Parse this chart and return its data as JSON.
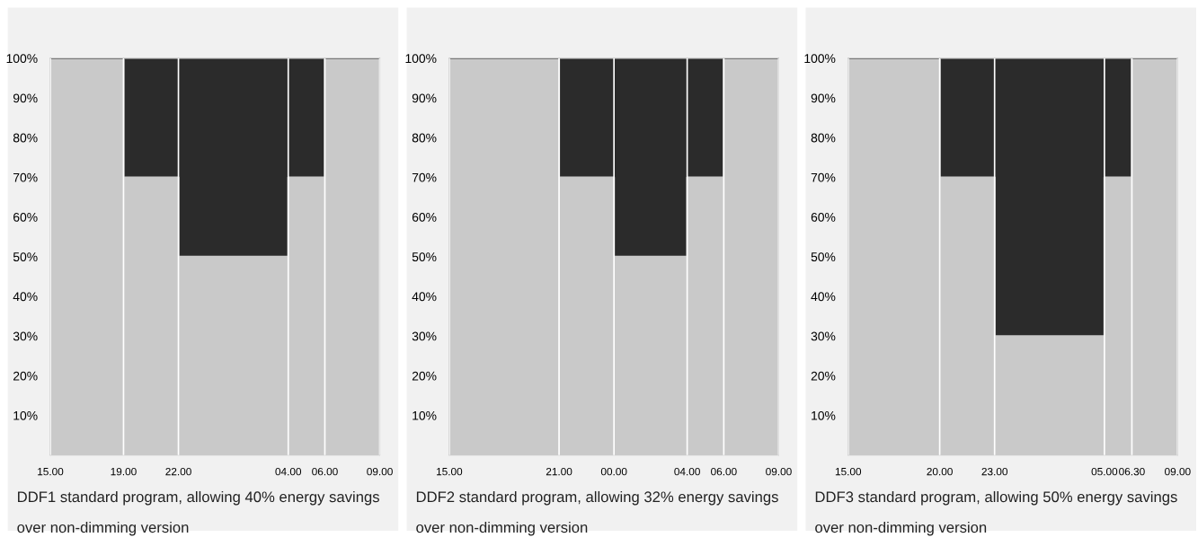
{
  "chart_data": [
    {
      "type": "area",
      "stacked": true,
      "x": [
        "2000-01-01T15:00",
        "2000-01-01T19:00",
        "2000-01-01T19:00",
        "2000-01-01T22:00",
        "2000-01-01T22:00",
        "2000-01-02T04:00",
        "2000-01-02T04:00",
        "2000-01-02T06:00",
        "2000-01-02T06:00",
        "2000-01-02T09:00"
      ],
      "series": [
        {
          "color": "#c9c9c9",
          "values": [
            100,
            100,
            70,
            70,
            50,
            50,
            70,
            70,
            100,
            100
          ]
        },
        {
          "color": "#2b2b2b",
          "values": [
            0,
            0,
            30,
            30,
            50,
            50,
            30,
            30,
            0,
            0
          ]
        }
      ],
      "xlim": [
        "2000-01-01T15:00",
        "2000-01-02T09:00"
      ],
      "ylim": [
        0,
        100
      ],
      "xticks": [
        {
          "value": "2000-01-01T15:00",
          "label": "15.00"
        },
        {
          "value": "2000-01-01T19:00",
          "label": "19.00"
        },
        {
          "value": "2000-01-01T22:00",
          "label": "22.00"
        },
        {
          "value": "2000-01-02T04:00",
          "label": "04.00"
        },
        {
          "value": "2000-01-02T06:00",
          "label": "06.00"
        },
        {
          "value": "2000-01-02T09:00",
          "label": "09.00"
        }
      ],
      "yticks": [
        {
          "value": 10,
          "label": "10%"
        },
        {
          "value": 20,
          "label": "20%"
        },
        {
          "value": 30,
          "label": "30%"
        },
        {
          "value": 40,
          "label": "40%"
        },
        {
          "value": 50,
          "label": "50%"
        },
        {
          "value": 60,
          "label": "60%"
        },
        {
          "value": 70,
          "label": "70%"
        },
        {
          "value": 80,
          "label": "80%"
        },
        {
          "value": 90,
          "label": "90%"
        },
        {
          "value": 100,
          "label": "100%"
        }
      ],
      "grid": "x",
      "annotations": [
        "DDF1 standard program, allowing 40% energy savings",
        "over non-dimming version"
      ]
    },
    {
      "type": "area",
      "stacked": true,
      "x": [
        "2000-01-01T15:00",
        "2000-01-01T21:00",
        "2000-01-01T21:00",
        "2000-01-02T00:00",
        "2000-01-02T00:00",
        "2000-01-02T04:00",
        "2000-01-02T04:00",
        "2000-01-02T06:00",
        "2000-01-02T06:00",
        "2000-01-02T09:00"
      ],
      "series": [
        {
          "color": "#c9c9c9",
          "values": [
            100,
            100,
            70,
            70,
            50,
            50,
            70,
            70,
            100,
            100
          ]
        },
        {
          "color": "#2b2b2b",
          "values": [
            0,
            0,
            30,
            30,
            50,
            50,
            30,
            30,
            0,
            0
          ]
        }
      ],
      "xlim": [
        "2000-01-01T15:00",
        "2000-01-02T09:00"
      ],
      "ylim": [
        0,
        100
      ],
      "xticks": [
        {
          "value": "2000-01-01T15:00",
          "label": "15.00"
        },
        {
          "value": "2000-01-01T21:00",
          "label": "21.00"
        },
        {
          "value": "2000-01-02T00:00",
          "label": "00.00"
        },
        {
          "value": "2000-01-02T04:00",
          "label": "04.00"
        },
        {
          "value": "2000-01-02T06:00",
          "label": "06.00"
        },
        {
          "value": "2000-01-02T09:00",
          "label": "09.00"
        }
      ],
      "yticks": [
        {
          "value": 10,
          "label": "10%"
        },
        {
          "value": 20,
          "label": "20%"
        },
        {
          "value": 30,
          "label": "30%"
        },
        {
          "value": 40,
          "label": "40%"
        },
        {
          "value": 50,
          "label": "50%"
        },
        {
          "value": 60,
          "label": "60%"
        },
        {
          "value": 70,
          "label": "70%"
        },
        {
          "value": 80,
          "label": "80%"
        },
        {
          "value": 90,
          "label": "90%"
        },
        {
          "value": 100,
          "label": "100%"
        }
      ],
      "grid": "x",
      "annotations": [
        "DDF2 standard program, allowing 32% energy savings",
        "over non-dimming version"
      ]
    },
    {
      "type": "area",
      "stacked": true,
      "x": [
        "2000-01-01T15:00",
        "2000-01-01T20:00",
        "2000-01-01T20:00",
        "2000-01-01T23:00",
        "2000-01-01T23:00",
        "2000-01-02T05:00",
        "2000-01-02T05:00",
        "2000-01-02T06:30",
        "2000-01-02T06:30",
        "2000-01-02T09:00"
      ],
      "series": [
        {
          "color": "#c9c9c9",
          "values": [
            100,
            100,
            70,
            70,
            30,
            30,
            70,
            70,
            100,
            100
          ]
        },
        {
          "color": "#2b2b2b",
          "values": [
            0,
            0,
            30,
            30,
            70,
            70,
            30,
            30,
            0,
            0
          ]
        }
      ],
      "xlim": [
        "2000-01-01T15:00",
        "2000-01-02T09:00"
      ],
      "ylim": [
        0,
        100
      ],
      "xticks": [
        {
          "value": "2000-01-01T15:00",
          "label": "15.00"
        },
        {
          "value": "2000-01-01T20:00",
          "label": "20.00"
        },
        {
          "value": "2000-01-01T23:00",
          "label": "23.00"
        },
        {
          "value": "2000-01-02T05:00",
          "label": "05.00"
        },
        {
          "value": "2000-01-02T06:30",
          "label": "06.30"
        },
        {
          "value": "2000-01-02T09:00",
          "label": "09.00"
        }
      ],
      "yticks": [
        {
          "value": 10,
          "label": "10%"
        },
        {
          "value": 20,
          "label": "20%"
        },
        {
          "value": 30,
          "label": "30%"
        },
        {
          "value": 40,
          "label": "40%"
        },
        {
          "value": 50,
          "label": "50%"
        },
        {
          "value": 60,
          "label": "60%"
        },
        {
          "value": 70,
          "label": "70%"
        },
        {
          "value": 80,
          "label": "80%"
        },
        {
          "value": 90,
          "label": "90%"
        },
        {
          "value": 100,
          "label": "100%"
        }
      ],
      "grid": "x",
      "annotations": [
        "DDF3 standard program, allowing 50% energy savings",
        "over non-dimming version"
      ]
    }
  ]
}
